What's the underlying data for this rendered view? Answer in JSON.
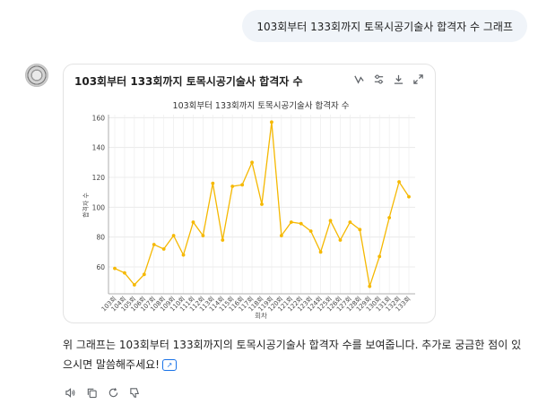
{
  "user_message": "103회부터 133회까지 토목시공기술사 합격자 수 그래프",
  "card": {
    "title": "103회부터 133회까지 토목시공기술사 합격자 수",
    "tools": [
      "chart-type-icon",
      "settings-icon",
      "download-icon",
      "expand-icon"
    ]
  },
  "chart_data": {
    "type": "line",
    "title": "103회부터 133회까지 토목시공기술사 합격자 수",
    "xlabel": "회차",
    "ylabel": "합격자 수",
    "categories": [
      "103회",
      "104회",
      "105회",
      "106회",
      "107회",
      "108회",
      "109회",
      "110회",
      "111회",
      "112회",
      "113회",
      "114회",
      "115회",
      "116회",
      "117회",
      "118회",
      "119회",
      "120회",
      "121회",
      "122회",
      "123회",
      "124회",
      "125회",
      "126회",
      "127회",
      "128회",
      "129회",
      "130회",
      "131회",
      "132회",
      "133회"
    ],
    "values": [
      59,
      56,
      48,
      55,
      75,
      72,
      81,
      68,
      90,
      81,
      116,
      78,
      114,
      115,
      130,
      102,
      157,
      81,
      90,
      89,
      84,
      70,
      91,
      78,
      90,
      85,
      47,
      67,
      93,
      117,
      107
    ],
    "yticks": [
      60,
      80,
      100,
      120,
      140,
      160
    ],
    "ylim": [
      42,
      162
    ],
    "grid": true,
    "color": "#f5b800"
  },
  "reply": {
    "text": "위 그래프는 103회부터 133회까지의 토목시공기술사 합격자 수를 보여줍니다. 추가로 궁금한 점이 있으시면 말씀해주세요!",
    "chip": "↗"
  },
  "actions": [
    "listen-icon",
    "copy-icon",
    "regenerate-icon",
    "thumbs-down-icon"
  ]
}
